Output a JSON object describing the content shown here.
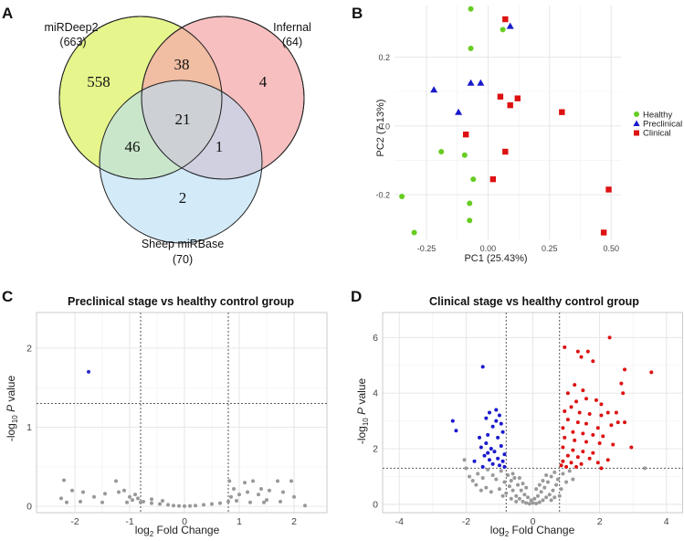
{
  "panels": {
    "A": "A",
    "B": "B",
    "C": "C",
    "D": "D"
  },
  "chart_data": [
    {
      "panel": "A",
      "type": "venn",
      "sets": [
        {
          "name": "miRDeep2",
          "total": "(663)",
          "color": "#e6f58c"
        },
        {
          "name": "Infernal",
          "total": "(64)",
          "color": "#f4a9ab"
        },
        {
          "name": "Sheep miRBase",
          "total": "(70)",
          "color": "#b5dcf5"
        }
      ],
      "regions": {
        "mirdeep_only": "558",
        "infernal_only": "4",
        "mirbase_only": "2",
        "mirdeep_infernal": "38",
        "mirdeep_mirbase": "46",
        "infernal_mirbase": "1",
        "all_three": "21"
      }
    },
    {
      "panel": "B",
      "type": "scatter",
      "title": "",
      "xlabel": "PC1 (25.43%)",
      "ylabel": "PC2 (7.13%)",
      "xlim": [
        -0.38,
        0.54
      ],
      "ylim": [
        -0.33,
        0.35
      ],
      "xticks": [
        -0.25,
        0,
        0.25,
        0.5
      ],
      "xtick_labels": [
        "-0.25",
        "0.00",
        "0.25",
        "0.50"
      ],
      "yticks": [
        -0.2,
        0,
        0.2
      ],
      "ytick_labels": [
        "-0.2",
        "0.0",
        "0.2"
      ],
      "grid": true,
      "legend_position": "right",
      "series": [
        {
          "name": "Healthy",
          "color": "#66cc22",
          "marker": "circle",
          "points": [
            [
              -0.07,
              0.34
            ],
            [
              0.06,
              0.28
            ],
            [
              -0.07,
              0.225
            ],
            [
              -0.19,
              -0.075
            ],
            [
              -0.095,
              -0.085
            ],
            [
              -0.06,
              -0.155
            ],
            [
              -0.35,
              -0.205
            ],
            [
              -0.075,
              -0.225
            ],
            [
              -0.075,
              -0.275
            ],
            [
              -0.3,
              -0.31
            ]
          ]
        },
        {
          "name": "Preclinical",
          "color": "#1a1acc",
          "marker": "triangle",
          "points": [
            [
              0.09,
              0.29
            ],
            [
              -0.22,
              0.105
            ],
            [
              -0.07,
              0.125
            ],
            [
              -0.03,
              0.125
            ],
            [
              -0.12,
              0.04
            ]
          ]
        },
        {
          "name": "Clinical",
          "color": "#dd1111",
          "marker": "square",
          "points": [
            [
              0.07,
              0.31
            ],
            [
              0.05,
              0.085
            ],
            [
              0.12,
              0.08
            ],
            [
              0.09,
              0.06
            ],
            [
              0.3,
              0.04
            ],
            [
              -0.09,
              -0.025
            ],
            [
              0.07,
              -0.075
            ],
            [
              0.02,
              -0.155
            ],
            [
              0.49,
              -0.185
            ],
            [
              0.47,
              -0.31
            ]
          ]
        }
      ]
    },
    {
      "panel": "C",
      "type": "scatter",
      "title": "Preclinical stage vs healthy control group",
      "xlabel": "log2 Fold Change",
      "ylabel": "-log10  P value",
      "xlim": [
        -2.7,
        2.6
      ],
      "ylim": [
        -0.08,
        2.45
      ],
      "xticks": [
        -2,
        -1,
        0,
        1,
        2
      ],
      "yticks": [
        0,
        1,
        2
      ],
      "thresholds": {
        "x": [
          -0.8,
          0.8
        ],
        "y": 1.3
      },
      "grid": true,
      "series": [
        {
          "name": "",
          "color": "#2a2acc",
          "points": [
            [
              -1.75,
              1.7
            ]
          ]
        },
        {
          "name": "",
          "color": "#999999",
          "points": [
            [
              -2.2,
              0.33
            ],
            [
              -2.05,
              0.2
            ],
            [
              -2.25,
              0.1
            ],
            [
              -1.85,
              0.18
            ],
            [
              -1.65,
              0.12
            ],
            [
              -1.45,
              0.16
            ],
            [
              -1.25,
              0.32
            ],
            [
              -1.2,
              0.18
            ],
            [
              -1.1,
              0.2
            ],
            [
              -1.0,
              0.12
            ],
            [
              -0.9,
              0.15
            ],
            [
              -0.85,
              0.1
            ],
            [
              -2.15,
              0.05
            ],
            [
              -1.9,
              0.06
            ],
            [
              -1.5,
              0.05
            ],
            [
              -1.05,
              0.05
            ],
            [
              -0.95,
              0.08
            ],
            [
              -0.8,
              0.05
            ],
            [
              -0.75,
              0.06
            ],
            [
              -0.6,
              0.04
            ],
            [
              -0.45,
              0.03
            ],
            [
              -0.3,
              0.02
            ],
            [
              -0.2,
              0.01
            ],
            [
              -0.1,
              0.005
            ],
            [
              0.0,
              0.002
            ],
            [
              0.1,
              0.005
            ],
            [
              0.2,
              0.01
            ],
            [
              0.35,
              0.02
            ],
            [
              0.5,
              0.03
            ],
            [
              0.65,
              0.04
            ],
            [
              0.8,
              0.06
            ],
            [
              0.82,
              0.32
            ],
            [
              0.9,
              0.22
            ],
            [
              1.0,
              0.15
            ],
            [
              1.1,
              0.3
            ],
            [
              1.15,
              0.18
            ],
            [
              1.25,
              0.32
            ],
            [
              1.35,
              0.15
            ],
            [
              1.4,
              0.22
            ],
            [
              1.5,
              0.08
            ],
            [
              1.55,
              0.2
            ],
            [
              1.7,
              0.32
            ],
            [
              1.8,
              0.18
            ],
            [
              1.95,
              0.32
            ],
            [
              2.0,
              0.12
            ],
            [
              2.2,
              0.01
            ],
            [
              1.2,
              0.05
            ],
            [
              1.45,
              0.05
            ],
            [
              1.75,
              0.06
            ],
            [
              0.95,
              0.07
            ],
            [
              0.85,
              0.12
            ],
            [
              -0.6,
              0.09
            ],
            [
              -0.4,
              0.07
            ]
          ]
        }
      ]
    },
    {
      "panel": "D",
      "type": "scatter",
      "title": "Clinical stage vs healthy control group",
      "xlabel": "log2 Fold Change",
      "ylabel": "-log10  P value",
      "xlim": [
        -4.5,
        4.5
      ],
      "ylim": [
        -0.3,
        6.9
      ],
      "xticks": [
        -4,
        -2,
        0,
        2,
        4
      ],
      "yticks": [
        0,
        2,
        4,
        6
      ],
      "thresholds": {
        "x": [
          -0.8,
          0.8
        ],
        "y": 1.3
      },
      "grid": true,
      "series": [
        {
          "name": "",
          "color": "#1a1acc",
          "points": [
            [
              -1.5,
              4.95
            ],
            [
              -2.4,
              3.0
            ],
            [
              -2.3,
              2.65
            ],
            [
              -1.75,
              1.55
            ],
            [
              -1.3,
              3.3
            ],
            [
              -1.1,
              3.0
            ],
            [
              -1.0,
              3.2
            ],
            [
              -1.2,
              2.8
            ],
            [
              -0.9,
              2.6
            ],
            [
              -1.35,
              2.5
            ],
            [
              -1.05,
              2.4
            ],
            [
              -1.4,
              2.2
            ],
            [
              -0.95,
              2.1
            ],
            [
              -1.25,
              2.0
            ],
            [
              -1.55,
              2.05
            ],
            [
              -1.15,
              1.9
            ],
            [
              -0.85,
              1.8
            ],
            [
              -1.45,
              1.75
            ],
            [
              -1.05,
              1.65
            ],
            [
              -1.3,
              1.6
            ],
            [
              -0.9,
              1.55
            ],
            [
              -1.2,
              1.45
            ],
            [
              -1.5,
              1.35
            ],
            [
              -1.0,
              1.4
            ],
            [
              -0.85,
              1.35
            ],
            [
              -1.35,
              1.85
            ],
            [
              -1.6,
              2.4
            ],
            [
              -1.1,
              3.4
            ],
            [
              -0.95,
              2.9
            ],
            [
              -1.4,
              3.1
            ]
          ]
        },
        {
          "name": "",
          "color": "#dd1111",
          "points": [
            [
              2.3,
              6.0
            ],
            [
              0.95,
              5.65
            ],
            [
              1.35,
              5.5
            ],
            [
              1.65,
              5.5
            ],
            [
              1.45,
              5.3
            ],
            [
              1.8,
              5.15
            ],
            [
              2.75,
              4.85
            ],
            [
              3.55,
              4.75
            ],
            [
              2.65,
              4.35
            ],
            [
              2.7,
              4.0
            ],
            [
              1.25,
              4.3
            ],
            [
              1.5,
              4.1
            ],
            [
              1.05,
              4.0
            ],
            [
              1.6,
              3.8
            ],
            [
              1.9,
              3.75
            ],
            [
              2.05,
              3.6
            ],
            [
              1.3,
              3.7
            ],
            [
              1.15,
              3.5
            ],
            [
              0.95,
              3.35
            ],
            [
              1.4,
              3.3
            ],
            [
              1.7,
              3.25
            ],
            [
              2.05,
              3.2
            ],
            [
              2.25,
              3.3
            ],
            [
              2.5,
              3.3
            ],
            [
              2.55,
              2.95
            ],
            [
              2.75,
              2.95
            ],
            [
              2.35,
              2.85
            ],
            [
              1.05,
              3.05
            ],
            [
              1.35,
              2.95
            ],
            [
              1.6,
              2.9
            ],
            [
              1.95,
              2.75
            ],
            [
              0.9,
              2.75
            ],
            [
              1.2,
              2.6
            ],
            [
              1.5,
              2.55
            ],
            [
              1.8,
              2.5
            ],
            [
              2.1,
              2.45
            ],
            [
              0.95,
              2.4
            ],
            [
              1.25,
              2.3
            ],
            [
              1.6,
              2.25
            ],
            [
              2.0,
              2.2
            ],
            [
              2.4,
              2.15
            ],
            [
              2.95,
              2.05
            ],
            [
              0.9,
              2.05
            ],
            [
              1.2,
              1.95
            ],
            [
              1.5,
              1.9
            ],
            [
              1.8,
              1.85
            ],
            [
              1.05,
              1.75
            ],
            [
              1.35,
              1.7
            ],
            [
              1.7,
              1.65
            ],
            [
              0.9,
              1.55
            ],
            [
              1.15,
              1.5
            ],
            [
              1.45,
              1.45
            ],
            [
              1.95,
              1.5
            ],
            [
              0.85,
              1.4
            ],
            [
              1.3,
              1.35
            ],
            [
              2.25,
              1.6
            ],
            [
              2.05,
              1.3
            ],
            [
              1.0,
              1.35
            ]
          ]
        },
        {
          "name": "",
          "color": "#999999",
          "points": [
            [
              3.35,
              1.3
            ],
            [
              -2.05,
              1.6
            ],
            [
              -2.0,
              1.3
            ],
            [
              -1.65,
              1.1
            ],
            [
              -1.5,
              0.95
            ],
            [
              -1.8,
              0.85
            ],
            [
              -1.35,
              1.25
            ],
            [
              -1.2,
              1.05
            ],
            [
              -1.1,
              0.9
            ],
            [
              -0.95,
              1.2
            ],
            [
              -0.85,
              0.8
            ],
            [
              -0.75,
              1.05
            ],
            [
              -0.7,
              0.65
            ],
            [
              -0.65,
              0.85
            ],
            [
              -0.6,
              0.5
            ],
            [
              -0.55,
              0.95
            ],
            [
              -0.5,
              0.3
            ],
            [
              -0.45,
              0.7
            ],
            [
              -0.4,
              0.2
            ],
            [
              -0.35,
              0.5
            ],
            [
              -0.3,
              0.1
            ],
            [
              -0.25,
              0.35
            ],
            [
              -0.2,
              0.05
            ],
            [
              -0.15,
              0.25
            ],
            [
              -0.1,
              0.02
            ],
            [
              -0.05,
              0.15
            ],
            [
              0.0,
              0.05
            ],
            [
              0.05,
              0.2
            ],
            [
              0.1,
              0.03
            ],
            [
              0.15,
              0.3
            ],
            [
              0.2,
              0.08
            ],
            [
              0.25,
              0.45
            ],
            [
              0.3,
              0.15
            ],
            [
              0.35,
              0.6
            ],
            [
              0.4,
              0.25
            ],
            [
              0.45,
              0.8
            ],
            [
              0.5,
              0.35
            ],
            [
              0.55,
              1.0
            ],
            [
              0.6,
              0.5
            ],
            [
              0.65,
              1.15
            ],
            [
              0.7,
              0.7
            ],
            [
              0.75,
              0.9
            ],
            [
              -1.4,
              0.6
            ],
            [
              -1.0,
              0.55
            ],
            [
              -0.8,
              0.4
            ],
            [
              -1.25,
              0.45
            ],
            [
              -1.55,
              0.5
            ],
            [
              -0.9,
              0.3
            ],
            [
              -0.65,
              0.2
            ],
            [
              0.65,
              0.25
            ],
            [
              0.85,
              0.55
            ],
            [
              1.0,
              0.8
            ],
            [
              1.2,
              0.9
            ],
            [
              0.9,
              1.1
            ],
            [
              1.1,
              1.2
            ],
            [
              0.8,
              0.3
            ],
            [
              -0.6,
              1.1
            ],
            [
              -0.4,
              0.95
            ],
            [
              0.4,
              1.05
            ],
            [
              0.3,
              0.85
            ],
            [
              -0.2,
              0.6
            ],
            [
              0.1,
              0.55
            ],
            [
              -0.3,
              0.75
            ],
            [
              0.2,
              0.7
            ],
            [
              0.55,
              0.15
            ],
            [
              -0.5,
              0.1
            ],
            [
              -1.7,
              0.7
            ],
            [
              -1.9,
              1.0
            ]
          ]
        }
      ]
    }
  ]
}
